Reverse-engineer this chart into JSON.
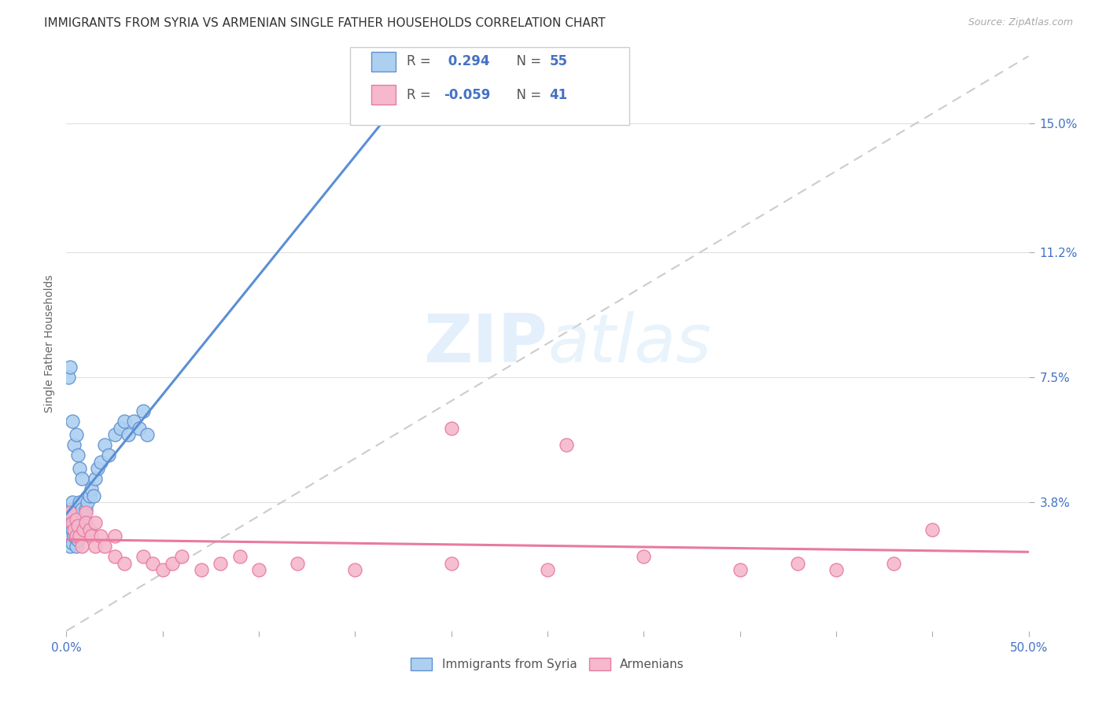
{
  "title": "IMMIGRANTS FROM SYRIA VS ARMENIAN SINGLE FATHER HOUSEHOLDS CORRELATION CHART",
  "source": "Source: ZipAtlas.com",
  "ylabel": "Single Father Households",
  "xlim": [
    0.0,
    0.5
  ],
  "ylim": [
    0.0,
    0.17
  ],
  "xticks": [
    0.0,
    0.05,
    0.1,
    0.15,
    0.2,
    0.25,
    0.3,
    0.35,
    0.4,
    0.45,
    0.5
  ],
  "ytick_positions": [
    0.038,
    0.075,
    0.112,
    0.15
  ],
  "ytick_labels": [
    "3.8%",
    "7.5%",
    "11.2%",
    "15.0%"
  ],
  "r_syria": 0.294,
  "n_syria": 55,
  "r_armenian": -0.059,
  "n_armenian": 41,
  "color_syria": "#add0f0",
  "color_armenian": "#f5b8cc",
  "color_syria_edge": "#6090d0",
  "color_armenian_edge": "#e87aa0",
  "color_syria_line": "#5b8fd4",
  "color_armenian_line": "#e87aa0",
  "color_text_blue": "#4472c4",
  "grid_color": "#e0e0e0",
  "background_color": "#ffffff",
  "title_fontsize": 11,
  "axis_label_fontsize": 10,
  "tick_fontsize": 11,
  "syria_x": [
    0.001,
    0.001,
    0.001,
    0.002,
    0.002,
    0.002,
    0.002,
    0.003,
    0.003,
    0.003,
    0.003,
    0.003,
    0.004,
    0.004,
    0.004,
    0.005,
    0.005,
    0.005,
    0.005,
    0.006,
    0.006,
    0.006,
    0.007,
    0.007,
    0.008,
    0.008,
    0.009,
    0.009,
    0.01,
    0.01,
    0.011,
    0.012,
    0.013,
    0.014,
    0.015,
    0.016,
    0.018,
    0.02,
    0.022,
    0.025,
    0.028,
    0.03,
    0.032,
    0.035,
    0.038,
    0.04,
    0.042,
    0.001,
    0.002,
    0.003,
    0.004,
    0.005,
    0.006,
    0.007,
    0.008
  ],
  "syria_y": [
    0.03,
    0.033,
    0.036,
    0.025,
    0.028,
    0.032,
    0.035,
    0.026,
    0.03,
    0.033,
    0.036,
    0.038,
    0.028,
    0.032,
    0.035,
    0.025,
    0.028,
    0.03,
    0.034,
    0.027,
    0.031,
    0.035,
    0.03,
    0.038,
    0.032,
    0.036,
    0.03,
    0.033,
    0.032,
    0.036,
    0.038,
    0.04,
    0.042,
    0.04,
    0.045,
    0.048,
    0.05,
    0.055,
    0.052,
    0.058,
    0.06,
    0.062,
    0.058,
    0.062,
    0.06,
    0.065,
    0.058,
    0.075,
    0.078,
    0.062,
    0.055,
    0.058,
    0.052,
    0.048,
    0.045
  ],
  "armenian_x": [
    0.002,
    0.003,
    0.004,
    0.005,
    0.005,
    0.006,
    0.007,
    0.008,
    0.009,
    0.01,
    0.01,
    0.012,
    0.013,
    0.015,
    0.015,
    0.018,
    0.02,
    0.025,
    0.025,
    0.03,
    0.04,
    0.045,
    0.05,
    0.055,
    0.06,
    0.07,
    0.08,
    0.09,
    0.1,
    0.12,
    0.15,
    0.2,
    0.25,
    0.3,
    0.35,
    0.38,
    0.4,
    0.43,
    0.45,
    0.2,
    0.26
  ],
  "armenian_y": [
    0.035,
    0.032,
    0.03,
    0.033,
    0.028,
    0.031,
    0.028,
    0.025,
    0.03,
    0.035,
    0.032,
    0.03,
    0.028,
    0.025,
    0.032,
    0.028,
    0.025,
    0.022,
    0.028,
    0.02,
    0.022,
    0.02,
    0.018,
    0.02,
    0.022,
    0.018,
    0.02,
    0.022,
    0.018,
    0.02,
    0.018,
    0.02,
    0.018,
    0.022,
    0.018,
    0.02,
    0.018,
    0.02,
    0.03,
    0.06,
    0.055
  ]
}
